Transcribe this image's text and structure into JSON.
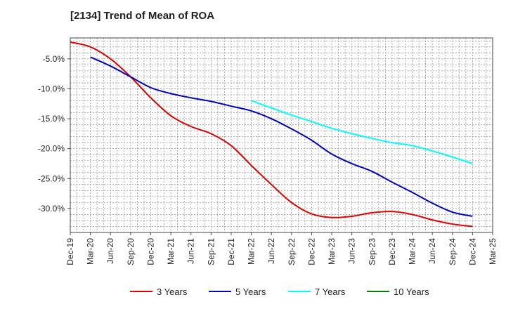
{
  "chart_data": {
    "type": "line",
    "title": "[2134]  Trend of Mean of ROA",
    "xlabel": "",
    "ylabel": "",
    "x": [
      "Dec-19",
      "Mar-20",
      "Jun-20",
      "Sep-20",
      "Dec-20",
      "Mar-21",
      "Jun-21",
      "Sep-21",
      "Dec-21",
      "Mar-22",
      "Jun-22",
      "Sep-22",
      "Dec-22",
      "Mar-23",
      "Jun-23",
      "Sep-23",
      "Dec-23",
      "Mar-24",
      "Jun-24",
      "Sep-24",
      "Dec-24",
      "Mar-25"
    ],
    "ylim": [
      -34.0,
      -1.5
    ],
    "yticks": [
      -5.0,
      -10.0,
      -15.0,
      -20.0,
      -25.0,
      -30.0
    ],
    "ytick_labels": [
      "-5.0%",
      "-10.0%",
      "-15.0%",
      "-20.0%",
      "-25.0%",
      "-30.0%"
    ],
    "grid": true,
    "legend_position": "bottom",
    "series": [
      {
        "name": "3 Years",
        "color": "#e00000",
        "values": [
          -2.2,
          -3.0,
          -5.0,
          -8.0,
          -11.5,
          -14.5,
          -16.3,
          -17.5,
          -19.5,
          -22.8,
          -26.0,
          -29.0,
          -30.9,
          -31.5,
          -31.3,
          -30.7,
          -30.5,
          -31.0,
          -31.9,
          -32.6,
          -33.0,
          null
        ]
      },
      {
        "name": "5 Years",
        "color": "#0000c0",
        "values": [
          null,
          -4.7,
          -6.2,
          -8.0,
          -9.8,
          -10.8,
          -11.5,
          -12.1,
          -12.9,
          -13.7,
          -15.0,
          -16.7,
          -18.6,
          -20.9,
          -22.5,
          -23.8,
          -25.6,
          -27.3,
          -29.1,
          -30.6,
          -31.3,
          null
        ]
      },
      {
        "name": "7 Years",
        "color": "#00ffff",
        "values": [
          null,
          null,
          null,
          null,
          null,
          null,
          null,
          null,
          null,
          -12.0,
          -13.2,
          -14.4,
          -15.5,
          -16.6,
          -17.5,
          -18.3,
          -19.0,
          -19.5,
          -20.4,
          -21.4,
          -22.5,
          null
        ]
      },
      {
        "name": "10 Years",
        "color": "#008000",
        "values": [
          null,
          null,
          null,
          null,
          null,
          null,
          null,
          null,
          null,
          null,
          null,
          null,
          null,
          null,
          null,
          null,
          null,
          null,
          null,
          null,
          null,
          null
        ]
      }
    ]
  }
}
